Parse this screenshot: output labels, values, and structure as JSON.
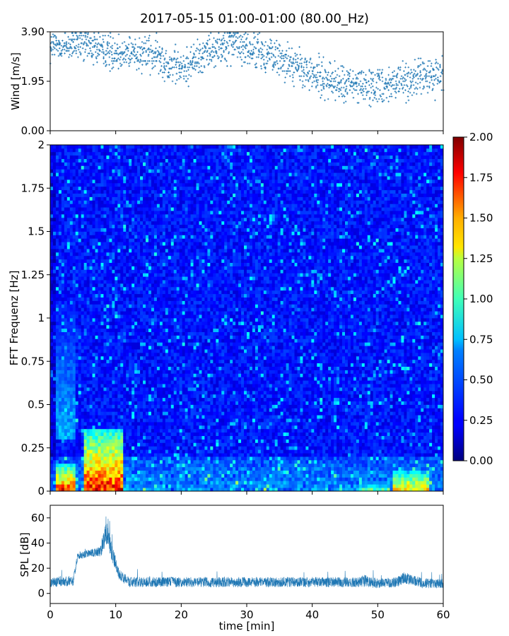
{
  "title": "2017-05-15 01:00-01:00 (80.00_Hz)",
  "colors": {
    "wind_marker": "#1f77b4",
    "spl_line": "#1f77b4",
    "axes": "#000000",
    "spectrogram_base": "#1a3cff"
  },
  "chart_data": [
    {
      "type": "scatter",
      "name": "wind",
      "ylabel": "Wind [m/s]",
      "xlim": [
        0,
        60
      ],
      "ylim": [
        0,
        3.9
      ],
      "yticks": [
        "0.00",
        "1.95",
        "3.90"
      ],
      "x_tick_labels_shown": false,
      "trend": {
        "x": [
          0,
          5,
          10,
          15,
          20,
          25,
          28,
          30,
          35,
          40,
          45,
          50,
          55,
          60
        ],
        "y": [
          3.3,
          3.4,
          3.1,
          3.1,
          2.4,
          3.3,
          3.5,
          3.2,
          2.9,
          2.2,
          1.8,
          1.8,
          2.0,
          2.2
        ]
      },
      "spread": 0.6
    },
    {
      "type": "heatmap",
      "name": "spectrogram",
      "ylabel": "FFT Frequenz [Hz]",
      "xlim": [
        0,
        60
      ],
      "ylim": [
        0,
        2
      ],
      "yticks": [
        "0",
        "0.25",
        "0.5",
        "0.75",
        "1",
        "1.25",
        "1.5",
        "1.75",
        "2"
      ],
      "x_tick_labels_shown": false,
      "colormap": "jet",
      "colorbar": {
        "min": 0,
        "max": 2,
        "ticks": [
          "0.00",
          "0.25",
          "0.50",
          "0.75",
          "1.00",
          "1.25",
          "1.50",
          "1.75",
          "2.00"
        ]
      },
      "hotspots": [
        {
          "t0": 0.8,
          "t1": 4.0,
          "f0": 0,
          "f1": 0.15,
          "value": 2.0
        },
        {
          "t0": 5.2,
          "t1": 11.0,
          "f0": 0,
          "f1": 0.35,
          "value": 2.0
        },
        {
          "t0": 0.8,
          "t1": 4.0,
          "f0": 0.3,
          "f1": 1.1,
          "value": 0.7
        },
        {
          "t0": 52.5,
          "t1": 58.0,
          "f0": 0,
          "f1": 0.12,
          "value": 1.6
        },
        {
          "t0": 47.0,
          "t1": 52.0,
          "f0": 0,
          "f1": 0.05,
          "value": 1.2
        }
      ]
    },
    {
      "type": "line",
      "name": "spl",
      "ylabel": "SPL [dB]",
      "xlabel": "time [min]",
      "xlim": [
        0,
        60
      ],
      "ylim": [
        -8,
        70
      ],
      "xticks": [
        "0",
        "10",
        "20",
        "30",
        "40",
        "50",
        "60"
      ],
      "yticks": [
        "0",
        "20",
        "40",
        "60"
      ],
      "envelope": {
        "x": [
          0,
          3.5,
          4.2,
          6.5,
          7.5,
          8.0,
          8.5,
          9.0,
          9.5,
          10.5,
          12,
          20,
          30,
          40,
          47,
          48,
          50,
          53,
          54,
          55,
          57,
          60
        ],
        "mean": [
          9,
          10,
          30,
          32,
          33,
          38,
          50,
          40,
          32,
          15,
          9,
          9,
          9,
          9,
          9,
          10,
          8,
          9,
          13,
          11,
          8,
          8
        ],
        "spread": [
          4,
          4,
          3,
          3,
          4,
          8,
          10,
          8,
          7,
          4,
          4,
          4,
          4,
          4,
          4,
          5,
          4,
          4,
          5,
          4,
          4,
          4
        ]
      }
    }
  ]
}
